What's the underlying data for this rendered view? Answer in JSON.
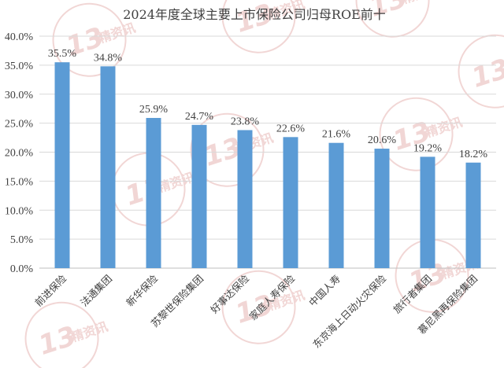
{
  "chart_data": {
    "type": "bar",
    "title": "2024年度全球主要上市保险公司归母ROE前十",
    "categories": [
      "前进保险",
      "法通集团",
      "新华保险",
      "苏黎世保险集团",
      "好事达保险",
      "家庭人寿保险",
      "中国人寿",
      "东京海上日动火灾保险",
      "旅行者集团",
      "慕尼黑再保险集团"
    ],
    "values": [
      35.5,
      34.8,
      25.9,
      24.7,
      23.8,
      22.6,
      21.6,
      20.6,
      19.2,
      18.2
    ],
    "data_labels": [
      "35.5%",
      "34.8%",
      "25.9%",
      "24.7%",
      "23.8%",
      "22.6%",
      "21.6%",
      "20.6%",
      "19.2%",
      "18.2%"
    ],
    "y_ticks": [
      "0.0%",
      "5.0%",
      "10.0%",
      "15.0%",
      "20.0%",
      "25.0%",
      "30.0%",
      "35.0%",
      "40.0%"
    ],
    "ylim": [
      0,
      40
    ],
    "ytick_step": 5,
    "grid": true,
    "bar_color": "#5b9bd5",
    "xlabel": "",
    "ylabel": ""
  },
  "watermark": {
    "number": "13",
    "text": "精资讯",
    "color": "#e7b6b3"
  }
}
